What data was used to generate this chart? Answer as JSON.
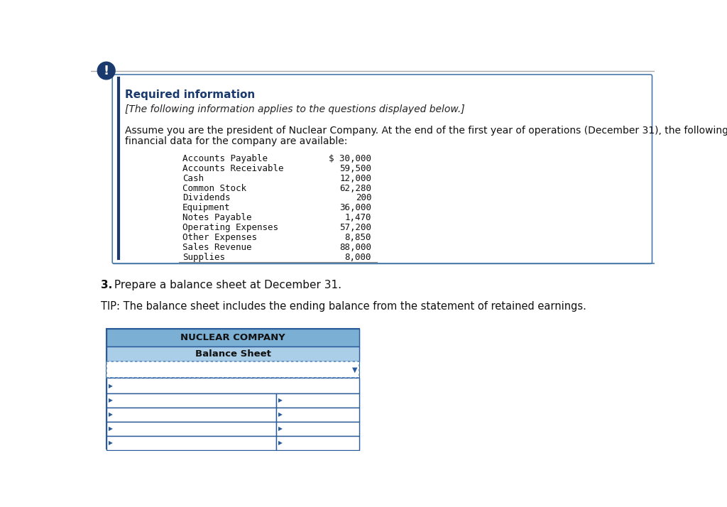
{
  "page_bg": "#ffffff",
  "header_text_color": "#1a3a6e",
  "required_info_text": "Required information",
  "italic_text": "[The following information applies to the questions displayed below.]",
  "body_line1": "Assume you are the president of Nuclear Company. At the end of the first year of operations (December 31), the following",
  "body_line2": "financial data for the company are available:",
  "financial_data": [
    [
      "Accounts Payable",
      "$ 30,000"
    ],
    [
      "Accounts Receivable",
      "59,500"
    ],
    [
      "Cash",
      "12,000"
    ],
    [
      "Common Stock",
      "62,280"
    ],
    [
      "Dividends",
      "200"
    ],
    [
      "Equipment",
      "36,000"
    ],
    [
      "Notes Payable",
      "1,470"
    ],
    [
      "Operating Expenses",
      "57,200"
    ],
    [
      "Other Expenses",
      "8,850"
    ],
    [
      "Sales Revenue",
      "88,000"
    ],
    [
      "Supplies",
      "8,000"
    ]
  ],
  "question_bold": "3.",
  "question_rest": " Prepare a balance sheet at December 31.",
  "tip_text": "TIP: The balance sheet includes the ending balance from the statement of retained earnings.",
  "company_name": "NUCLEAR COMPANY",
  "sheet_name": "Balance Sheet",
  "table_header_bg": "#7bafd4",
  "table_subheader_bg": "#aacde8",
  "table_border_color": "#2a5a9a",
  "table_dotted_color": "#5a8abf",
  "exclamation_bg": "#1a3a6e",
  "top_line_color": "#aaaaaa",
  "box_border_color": "#4a7aaa",
  "left_bar_color": "#1a3a6e",
  "row_bg_even": "#e8f0f8",
  "row_bg_odd": "#f5f8fc"
}
